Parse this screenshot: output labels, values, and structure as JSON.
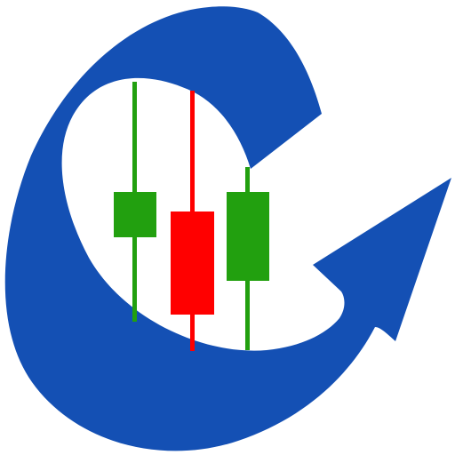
{
  "logo": {
    "name": "candlestick-growth-arrow-logo",
    "icon": "candlestick-chart-arrow-icon",
    "colors": {
      "background": "#ffffff",
      "ring": "#1450b4",
      "bullish": "#22a00f",
      "bearish": "#ff0000"
    },
    "candles": [
      {
        "direction": "up",
        "color": "#22a00f"
      },
      {
        "direction": "down",
        "color": "#ff0000"
      },
      {
        "direction": "up",
        "color": "#22a00f"
      }
    ]
  }
}
